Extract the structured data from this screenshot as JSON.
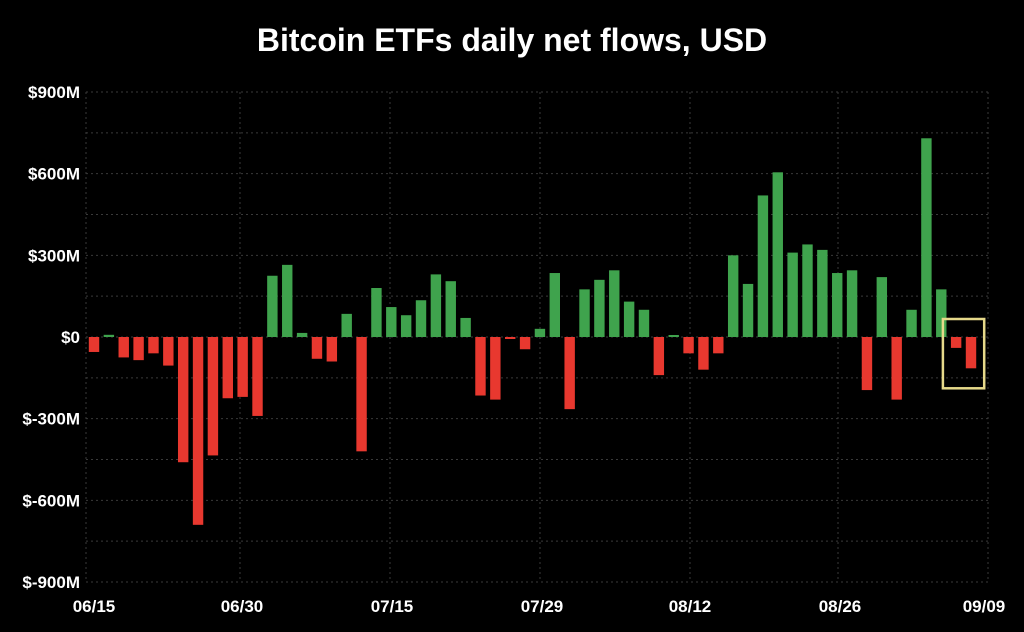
{
  "chart_data": {
    "type": "bar",
    "title": "Bitcoin ETFs daily net flows, USD",
    "xlabel": "",
    "ylabel": "",
    "ylim": [
      -900,
      900
    ],
    "y_ticks": [
      900,
      600,
      300,
      0,
      -300,
      -600,
      -900
    ],
    "y_tick_labels": [
      "$900M",
      "$600M",
      "$300M",
      "$0",
      "$-300M",
      "$-600M",
      "$-900M"
    ],
    "x_tick_labels": [
      "06/15",
      "06/30",
      "07/15",
      "07/29",
      "08/12",
      "08/26",
      "09/09"
    ],
    "unit": "USD millions",
    "positive_color": "#3fa34d",
    "negative_color": "#e8382f",
    "highlight_color": "#e6d98a",
    "grid": true,
    "highlight": {
      "from_index": 58,
      "to_index": 59
    },
    "values": [
      -55,
      8,
      -75,
      -85,
      -60,
      -105,
      -460,
      -690,
      -435,
      -225,
      -220,
      -290,
      225,
      265,
      15,
      -80,
      -90,
      85,
      -420,
      180,
      110,
      80,
      135,
      230,
      205,
      70,
      -215,
      -230,
      -5,
      -45,
      30,
      235,
      -265,
      175,
      210,
      245,
      130,
      100,
      -140,
      5,
      -60,
      -120,
      -60,
      300,
      195,
      520,
      605,
      310,
      340,
      320,
      235,
      245,
      -195,
      220,
      -230,
      100,
      730,
      175,
      -40,
      -115
    ]
  }
}
